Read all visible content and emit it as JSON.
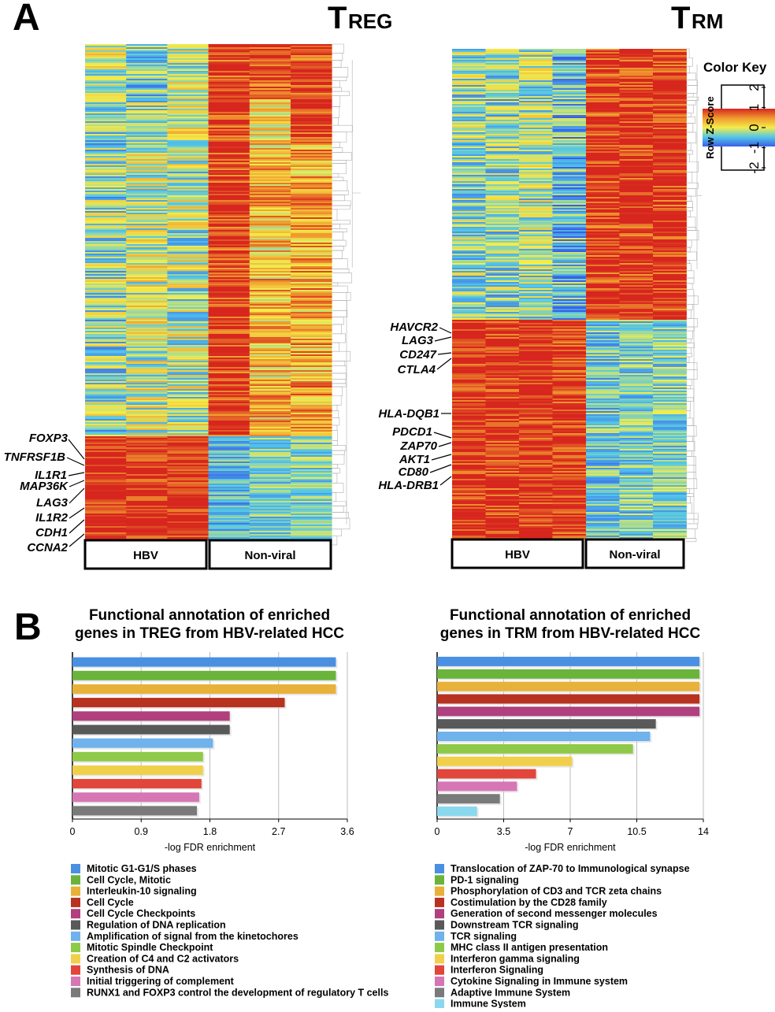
{
  "panel_a": {
    "letter": "A",
    "treg": {
      "title_main": "T",
      "title_sub": "REG",
      "groups": [
        "HBV",
        "Non-viral"
      ],
      "genes": [
        "FOXP3",
        "TNFRSF1B",
        "IL1R1",
        "MAP36K",
        "LAG3",
        "IL1R2",
        "CDH1",
        "CCNA2"
      ]
    },
    "trm": {
      "title_main": "T",
      "title_sub": "RM",
      "groups": [
        "HBV",
        "Non-viral"
      ],
      "genes": [
        "HAVCR2",
        "LAG3",
        "CD247",
        "CTLA4",
        "HLA-DQB1",
        "PDCD1",
        "ZAP70",
        "AKT1",
        "CD80",
        "HLA-DRB1"
      ]
    },
    "color_key": {
      "title": "Color Key",
      "axis_label": "Row Z-Score",
      "ticks": [
        "-2",
        "-1",
        "0",
        "1",
        "2"
      ],
      "colors": [
        "#3a5fe8",
        "#52c6e8",
        "#f4ec4a",
        "#f09a2e",
        "#d7261e"
      ]
    }
  },
  "panel_b": {
    "letter": "B"
  },
  "chart_data": [
    {
      "type": "bar",
      "orientation": "horizontal",
      "title": "Functional annotation of enriched genes in TREG from HBV-related HCC",
      "title_lines": [
        "Functional annotation of enriched",
        "genes in TREG from HBV-related HCC"
      ],
      "xlabel": "-log FDR enrichment",
      "xticks": [
        "0",
        "0.9",
        "1.8",
        "2.7",
        "3.6"
      ],
      "xlim": [
        0,
        3.6
      ],
      "grid": true,
      "categories": [
        "Mitotic G1-G1/S phases",
        "Cell Cycle, Mitotic",
        "Interleukin-10 signaling",
        "Cell Cycle",
        "Cell Cycle Checkpoints",
        "Regulation of DNA replication",
        "Amplification of signal from the kinetochores",
        "Mitotic Spindle Checkpoint",
        "Creation of C4 and C2 activators",
        "Synthesis of DNA",
        "Initial triggering of complement",
        "RUNX1 and FOXP3 control the development of regulatory T cells"
      ],
      "values": [
        3.45,
        3.45,
        3.45,
        2.78,
        2.06,
        2.06,
        1.84,
        1.71,
        1.71,
        1.69,
        1.66,
        1.63
      ],
      "colors": [
        "#4a90e2",
        "#6ab43c",
        "#e8b13a",
        "#b83220",
        "#b0407e",
        "#595959",
        "#6fb2ec",
        "#8fc94a",
        "#f0d04a",
        "#e2453a",
        "#d676b4",
        "#7a7a7a"
      ]
    },
    {
      "type": "bar",
      "orientation": "horizontal",
      "title": "Functional annotation of enriched genes in TRM from HBV-related HCC",
      "title_lines": [
        "Functional annotation of enriched",
        "genes in TRM from HBV-related HCC"
      ],
      "xlabel": "-log FDR enrichment",
      "xticks": [
        "0",
        "3.5",
        "7",
        "10.5",
        "14"
      ],
      "xlim": [
        0,
        14
      ],
      "grid": true,
      "categories": [
        "Translocation of ZAP-70 to Immunological synapse",
        "PD-1 signaling",
        "Phosphorylation of CD3 and TCR zeta chains",
        "Costimulation by the CD28 family",
        "Generation of second messenger molecules",
        "Downstream TCR signaling",
        "TCR signaling",
        "MHC class II antigen presentation",
        "Interferon gamma signaling",
        "Interferon Signaling",
        "Cytokine Signaling in Immune system",
        "Adaptive Immune System",
        "Immune System"
      ],
      "values": [
        13.8,
        13.8,
        13.8,
        13.8,
        13.8,
        11.5,
        11.2,
        10.3,
        7.1,
        5.2,
        4.2,
        3.3,
        2.1
      ],
      "colors": [
        "#4a90e2",
        "#6ab43c",
        "#e8b13a",
        "#b83220",
        "#b0407e",
        "#595959",
        "#6fb2ec",
        "#8fc94a",
        "#f0d04a",
        "#e2453a",
        "#d676b4",
        "#7a7a7a",
        "#8ad8ee"
      ]
    }
  ]
}
